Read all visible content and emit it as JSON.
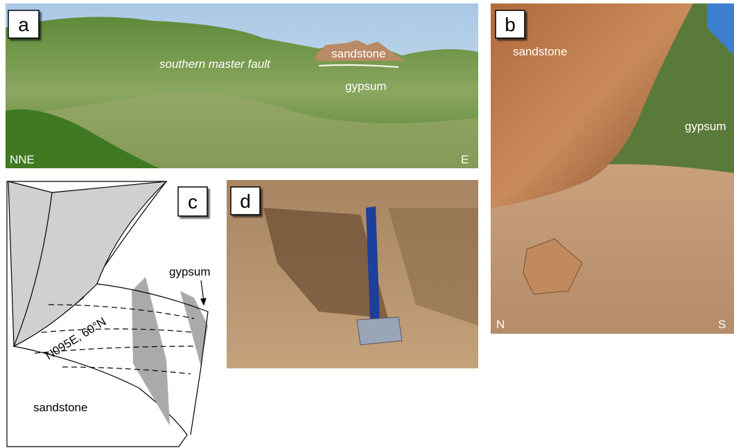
{
  "panels": [
    {
      "label": "a",
      "texts": [
        "southern master fault",
        "sandstone",
        "gypsum",
        "NNE",
        "E"
      ]
    },
    {
      "label": "b",
      "texts": [
        "sandstone",
        "gypsum",
        "N",
        "S"
      ]
    },
    {
      "label": "c",
      "texts": [
        "gypsum",
        "N095E, 60°N",
        "sandstone"
      ]
    },
    {
      "label": "d"
    }
  ]
}
